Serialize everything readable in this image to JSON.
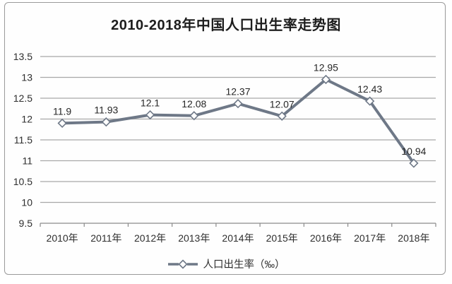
{
  "chart_data": {
    "type": "line",
    "title": "2010-2018年中国人口出生率走势图",
    "categories": [
      "2010年",
      "2011年",
      "2012年",
      "2013年",
      "2014年",
      "2015年",
      "2016年",
      "2017年",
      "2018年"
    ],
    "series": [
      {
        "name": "人口出生率（‰）",
        "values": [
          11.9,
          11.93,
          12.1,
          12.08,
          12.37,
          12.07,
          12.95,
          12.43,
          10.94
        ]
      }
    ],
    "data_labels": [
      "11.9",
      "11.93",
      "12.1",
      "12.08",
      "12.37",
      "12.07",
      "12.95",
      "12.43",
      "10.94"
    ],
    "xlabel": "",
    "ylabel": "",
    "ylim": [
      9.5,
      13.5
    ],
    "ytick_step": 0.5,
    "ytick_labels": [
      "13.5",
      "13",
      "12.5",
      "12",
      "11.5",
      "11",
      "10.5",
      "10",
      "9.5"
    ],
    "grid": "horizontal",
    "legend_position": "bottom",
    "legend_label": "人口出生率（‰）",
    "marker": "diamond",
    "colors": {
      "line": "#6e7887",
      "marker_fill": "#ffffff",
      "marker_stroke": "#6e7887",
      "grid": "#a8a8a8",
      "axis": "#8a8a8a",
      "text": "#2e2e2e",
      "title_text": "#1d1d1d",
      "frame_border": "#9a9a9a"
    }
  }
}
